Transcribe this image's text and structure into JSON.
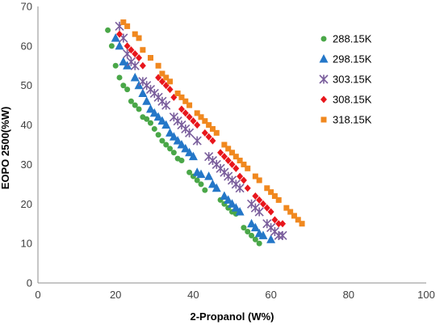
{
  "chart_data": {
    "type": "scatter",
    "title": "",
    "xlabel": "2-Propanol (W%)",
    "ylabel": "EOPO 2500(%W)",
    "xlim": [
      0,
      100
    ],
    "ylim": [
      0,
      70
    ],
    "x_ticks": [
      "0",
      "20",
      "40",
      "60",
      "80",
      "100"
    ],
    "y_ticks": [
      "0",
      "10",
      "20",
      "30",
      "40",
      "50",
      "60",
      "70"
    ],
    "grid": false,
    "legend_position": "right",
    "series": [
      {
        "name": "288.15K",
        "marker": "circle",
        "color": "#4aa748",
        "points": [
          [
            18,
            64
          ],
          [
            19,
            60
          ],
          [
            20,
            55
          ],
          [
            21,
            52
          ],
          [
            22,
            50
          ],
          [
            23,
            49
          ],
          [
            24,
            46
          ],
          [
            25,
            45
          ],
          [
            26,
            44
          ],
          [
            27,
            42
          ],
          [
            28,
            41.5
          ],
          [
            29,
            40.5
          ],
          [
            30,
            39
          ],
          [
            31,
            37.5
          ],
          [
            32,
            36
          ],
          [
            33,
            35
          ],
          [
            34,
            34
          ],
          [
            35,
            33
          ],
          [
            36,
            31.5
          ],
          [
            37,
            31
          ],
          [
            39,
            28
          ],
          [
            40,
            27
          ],
          [
            41,
            26
          ],
          [
            42,
            25
          ],
          [
            43,
            23.5
          ],
          [
            47,
            21
          ],
          [
            48,
            20
          ],
          [
            49,
            19
          ],
          [
            50,
            18
          ],
          [
            51,
            17.5
          ],
          [
            53,
            14
          ],
          [
            54,
            13
          ],
          [
            55,
            12
          ],
          [
            56,
            11
          ],
          [
            57,
            10
          ]
        ]
      },
      {
        "name": "298.15K",
        "marker": "triangle",
        "color": "#2477c8",
        "points": [
          [
            20,
            62
          ],
          [
            21,
            60
          ],
          [
            22,
            56
          ],
          [
            23,
            55
          ],
          [
            25,
            52
          ],
          [
            26,
            50
          ],
          [
            27,
            48
          ],
          [
            28,
            46
          ],
          [
            29,
            44
          ],
          [
            30,
            43
          ],
          [
            31,
            42
          ],
          [
            32,
            41
          ],
          [
            33,
            40
          ],
          [
            34,
            38
          ],
          [
            35,
            37
          ],
          [
            36,
            36
          ],
          [
            37,
            35
          ],
          [
            38,
            34
          ],
          [
            39,
            33
          ],
          [
            40,
            32
          ],
          [
            41,
            28
          ],
          [
            42,
            27.5
          ],
          [
            44,
            27
          ],
          [
            45,
            25
          ],
          [
            46,
            24
          ],
          [
            48,
            22
          ],
          [
            49,
            21
          ],
          [
            50,
            20
          ],
          [
            51,
            19
          ],
          [
            52,
            18
          ],
          [
            55,
            15
          ],
          [
            56,
            14
          ],
          [
            57,
            12.5
          ],
          [
            58,
            12
          ],
          [
            60,
            11
          ]
        ]
      },
      {
        "name": "303.15K",
        "marker": "star",
        "color": "#7a5e9c",
        "points": [
          [
            21,
            65
          ],
          [
            22,
            62
          ],
          [
            23,
            58
          ],
          [
            24,
            56
          ],
          [
            25,
            55
          ],
          [
            27,
            51
          ],
          [
            28,
            50
          ],
          [
            29,
            49
          ],
          [
            30,
            48
          ],
          [
            31,
            47
          ],
          [
            32,
            46
          ],
          [
            33,
            45
          ],
          [
            35,
            42
          ],
          [
            36,
            41
          ],
          [
            37,
            40
          ],
          [
            38,
            39
          ],
          [
            39,
            38
          ],
          [
            41,
            36
          ],
          [
            44,
            32
          ],
          [
            45,
            31
          ],
          [
            46,
            30
          ],
          [
            47,
            29
          ],
          [
            48,
            28
          ],
          [
            49,
            27
          ],
          [
            50,
            26
          ],
          [
            51,
            25
          ],
          [
            52,
            24
          ],
          [
            55,
            20
          ],
          [
            56,
            19
          ],
          [
            57,
            18
          ],
          [
            59,
            15
          ],
          [
            60,
            14
          ],
          [
            61,
            13
          ],
          [
            62,
            12
          ],
          [
            63,
            12
          ]
        ]
      },
      {
        "name": "308.15K",
        "marker": "diamond",
        "color": "#e8161c",
        "points": [
          [
            21,
            63
          ],
          [
            23,
            60
          ],
          [
            24,
            59
          ],
          [
            25,
            58
          ],
          [
            26,
            57
          ],
          [
            27,
            55
          ],
          [
            31,
            52
          ],
          [
            32,
            51
          ],
          [
            33,
            50
          ],
          [
            34,
            49
          ],
          [
            35,
            47
          ],
          [
            37,
            44
          ],
          [
            38,
            43
          ],
          [
            39,
            42
          ],
          [
            40,
            41
          ],
          [
            41,
            40
          ],
          [
            43,
            38
          ],
          [
            44,
            37
          ],
          [
            45,
            36
          ],
          [
            47,
            33
          ],
          [
            48,
            32
          ],
          [
            49,
            31
          ],
          [
            50,
            30
          ],
          [
            51,
            29
          ],
          [
            52,
            27
          ],
          [
            53,
            26
          ],
          [
            54,
            24
          ],
          [
            56,
            22
          ],
          [
            57,
            21
          ],
          [
            58,
            20
          ],
          [
            59,
            19
          ],
          [
            60,
            18
          ],
          [
            61,
            16
          ],
          [
            62,
            15
          ],
          [
            63,
            15
          ]
        ]
      },
      {
        "name": "318.15K",
        "marker": "square",
        "color": "#f0881f",
        "points": [
          [
            22,
            66
          ],
          [
            23,
            65
          ],
          [
            25,
            63
          ],
          [
            26,
            62
          ],
          [
            27,
            59
          ],
          [
            29,
            57
          ],
          [
            31,
            55
          ],
          [
            32,
            53
          ],
          [
            33,
            52
          ],
          [
            34,
            51
          ],
          [
            36,
            48
          ],
          [
            37,
            47
          ],
          [
            38,
            46
          ],
          [
            39,
            45
          ],
          [
            41,
            43
          ],
          [
            42,
            42
          ],
          [
            43,
            41
          ],
          [
            44,
            40
          ],
          [
            45,
            39
          ],
          [
            46,
            38
          ],
          [
            48,
            35
          ],
          [
            49,
            34
          ],
          [
            50,
            33
          ],
          [
            51,
            32
          ],
          [
            52,
            31
          ],
          [
            53,
            30
          ],
          [
            54,
            29
          ],
          [
            56,
            27
          ],
          [
            57,
            26
          ],
          [
            59,
            24
          ],
          [
            60,
            23
          ],
          [
            61,
            22
          ],
          [
            62,
            21
          ],
          [
            64,
            19
          ],
          [
            65,
            18
          ],
          [
            66,
            17
          ],
          [
            67,
            16
          ],
          [
            68,
            15
          ]
        ]
      }
    ]
  }
}
